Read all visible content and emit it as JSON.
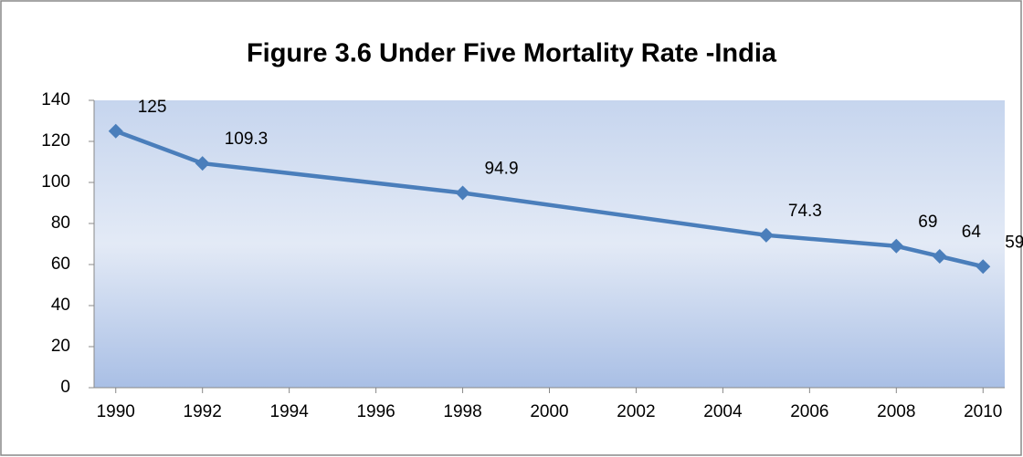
{
  "chart_data": {
    "type": "line",
    "title": "Figure 3.6 Under Five Mortality Rate -India",
    "x": [
      1990,
      1992,
      1998,
      2005,
      2008,
      2009,
      2010
    ],
    "series": [
      {
        "name": "Under Five Mortality Rate",
        "color": "#4a7ebb",
        "values": [
          125,
          109.3,
          94.9,
          74.3,
          69,
          64,
          59
        ]
      }
    ],
    "xlim": [
      1989.5,
      2010.5
    ],
    "xticks": [
      1990,
      1992,
      1994,
      1996,
      1998,
      2000,
      2002,
      2004,
      2006,
      2008,
      2010
    ],
    "ylim": [
      0,
      140
    ],
    "yticks": [
      0,
      20,
      40,
      60,
      80,
      100,
      120,
      140
    ]
  }
}
